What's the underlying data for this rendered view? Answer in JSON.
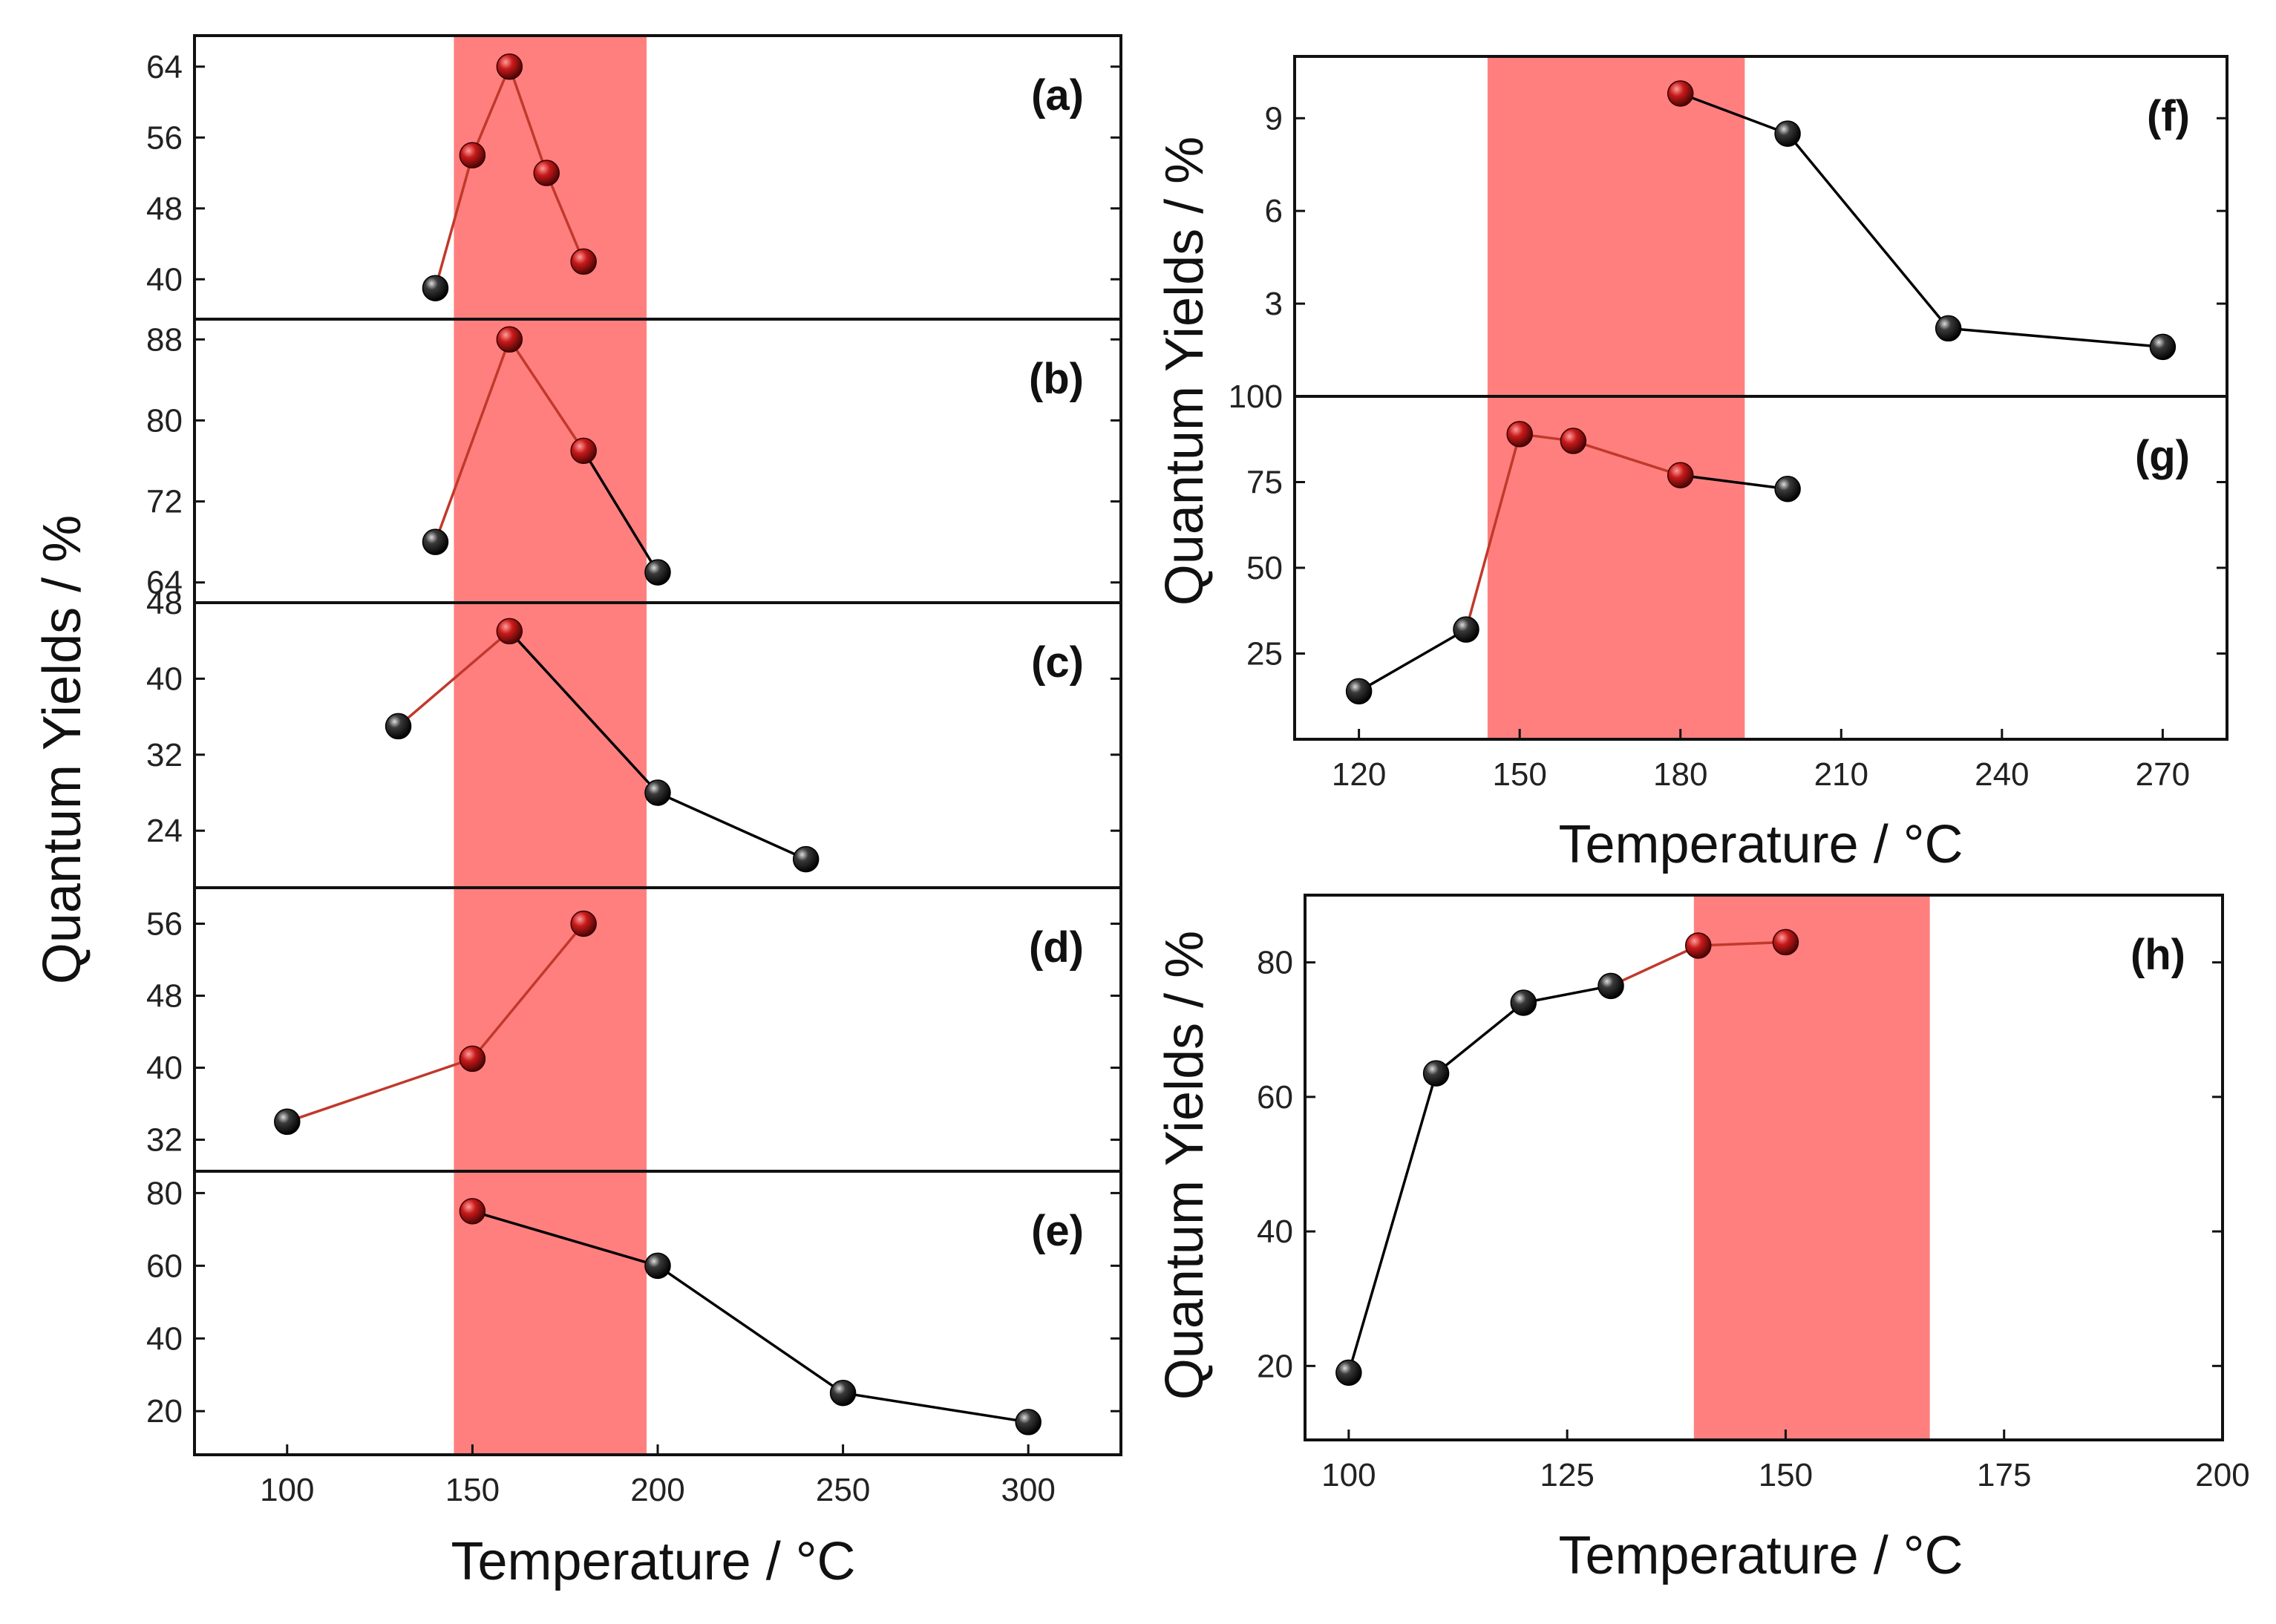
{
  "colors": {
    "band": "#ff7f7f",
    "highlight_point": "#b01010",
    "normal_point": "#1a1a1a",
    "highlight_line": "#c0392b",
    "normal_line": "#000000"
  },
  "chart_data": [
    {
      "type": "line",
      "id": "a",
      "panel_label": "(a)",
      "x": [
        140,
        150,
        160,
        170,
        180
      ],
      "y": [
        39,
        54,
        64,
        52,
        42
      ],
      "highlight": [
        false,
        true,
        true,
        true,
        true
      ],
      "xlim": [
        75,
        325
      ],
      "ylim": [
        35.5,
        67.5
      ],
      "yticks": [
        40,
        48,
        56,
        64
      ],
      "ytick_labels": [
        "40",
        "48",
        "56",
        "64"
      ],
      "band": [
        145,
        197
      ]
    },
    {
      "type": "line",
      "id": "b",
      "panel_label": "(b)",
      "x": [
        140,
        160,
        180,
        200
      ],
      "y": [
        68,
        88,
        77,
        65
      ],
      "highlight": [
        false,
        true,
        true,
        false
      ],
      "xlim": [
        75,
        325
      ],
      "ylim": [
        62,
        90
      ],
      "yticks": [
        64,
        72,
        80,
        88
      ],
      "ytick_labels": [
        "64",
        "72",
        "80",
        "88"
      ],
      "band": [
        145,
        197
      ]
    },
    {
      "type": "line",
      "id": "c",
      "panel_label": "(c)",
      "x": [
        130,
        160,
        200,
        240
      ],
      "y": [
        35,
        45,
        28,
        21
      ],
      "highlight": [
        false,
        true,
        false,
        false
      ],
      "xlim": [
        75,
        325
      ],
      "ylim": [
        18,
        48
      ],
      "yticks": [
        24,
        32,
        40,
        48
      ],
      "ytick_labels": [
        "24",
        "32",
        "40",
        "48"
      ],
      "band": [
        145,
        197
      ]
    },
    {
      "type": "line",
      "id": "d",
      "panel_label": "(d)",
      "x": [
        100,
        150,
        180
      ],
      "y": [
        34,
        41,
        56
      ],
      "highlight": [
        false,
        true,
        true
      ],
      "xlim": [
        75,
        325
      ],
      "ylim": [
        28.5,
        60
      ],
      "yticks": [
        32,
        40,
        48,
        56
      ],
      "ytick_labels": [
        "32",
        "40",
        "48",
        "56"
      ],
      "band": [
        145,
        197
      ]
    },
    {
      "type": "line",
      "id": "e",
      "panel_label": "(e)",
      "x": [
        150,
        200,
        250,
        300
      ],
      "y": [
        75,
        60,
        25,
        17
      ],
      "highlight": [
        true,
        false,
        false,
        false
      ],
      "xlim": [
        75,
        325
      ],
      "ylim": [
        8,
        86
      ],
      "yticks": [
        20,
        40,
        60,
        80
      ],
      "ytick_labels": [
        "20",
        "40",
        "60",
        "80"
      ],
      "xticks": [
        100,
        150,
        200,
        250,
        300
      ],
      "xtick_labels": [
        "100",
        "150",
        "200",
        "250",
        "300"
      ],
      "band": [
        145,
        197
      ]
    },
    {
      "type": "line",
      "id": "f",
      "panel_label": "(f)",
      "x": [
        180,
        200,
        230,
        270
      ],
      "y": [
        9.8,
        8.5,
        2.2,
        1.6
      ],
      "highlight": [
        true,
        false,
        false,
        false
      ],
      "xlim": [
        108,
        282
      ],
      "ylim": [
        0,
        11
      ],
      "yticks": [
        3,
        6,
        9
      ],
      "ytick_labels": [
        "3",
        "6",
        "9"
      ],
      "band": [
        144,
        192
      ]
    },
    {
      "type": "line",
      "id": "g",
      "panel_label": "(g)",
      "x": [
        120,
        140,
        150,
        160,
        180,
        200
      ],
      "y": [
        14,
        32,
        89,
        87,
        77,
        73
      ],
      "highlight": [
        false,
        false,
        true,
        true,
        true,
        false
      ],
      "xlim": [
        108,
        282
      ],
      "ylim": [
        0,
        100
      ],
      "yticks": [
        25,
        50,
        75,
        100
      ],
      "ytick_labels": [
        "25",
        "50",
        "75",
        "100"
      ],
      "xticks": [
        120,
        150,
        180,
        210,
        240,
        270
      ],
      "xtick_labels": [
        "120",
        "150",
        "180",
        "210",
        "240",
        "270"
      ],
      "band": [
        144,
        192
      ]
    },
    {
      "type": "line",
      "id": "h",
      "panel_label": "(h)",
      "x": [
        100,
        110,
        120,
        130,
        140,
        150
      ],
      "y": [
        19,
        63.5,
        74,
        76.5,
        82.5,
        83
      ],
      "highlight": [
        false,
        false,
        false,
        false,
        true,
        true
      ],
      "xlim": [
        95,
        200
      ],
      "ylim": [
        9,
        90
      ],
      "yticks": [
        20,
        40,
        60,
        80
      ],
      "ytick_labels": [
        "20",
        "40",
        "60",
        "80"
      ],
      "xticks": [
        100,
        125,
        150,
        175,
        200
      ],
      "xtick_labels": [
        "100",
        "125",
        "150",
        "175",
        "200"
      ],
      "band": [
        139.5,
        166.5
      ]
    }
  ],
  "axis_titles": {
    "left_y": "Quantum Yields / %",
    "left_x": "Temperature / °C",
    "right_top_y": "Quantum Yields / %",
    "right_top_x": "Temperature / °C",
    "right_bottom_y": "Quantum Yields / %",
    "right_bottom_x": "Temperature / °C"
  }
}
